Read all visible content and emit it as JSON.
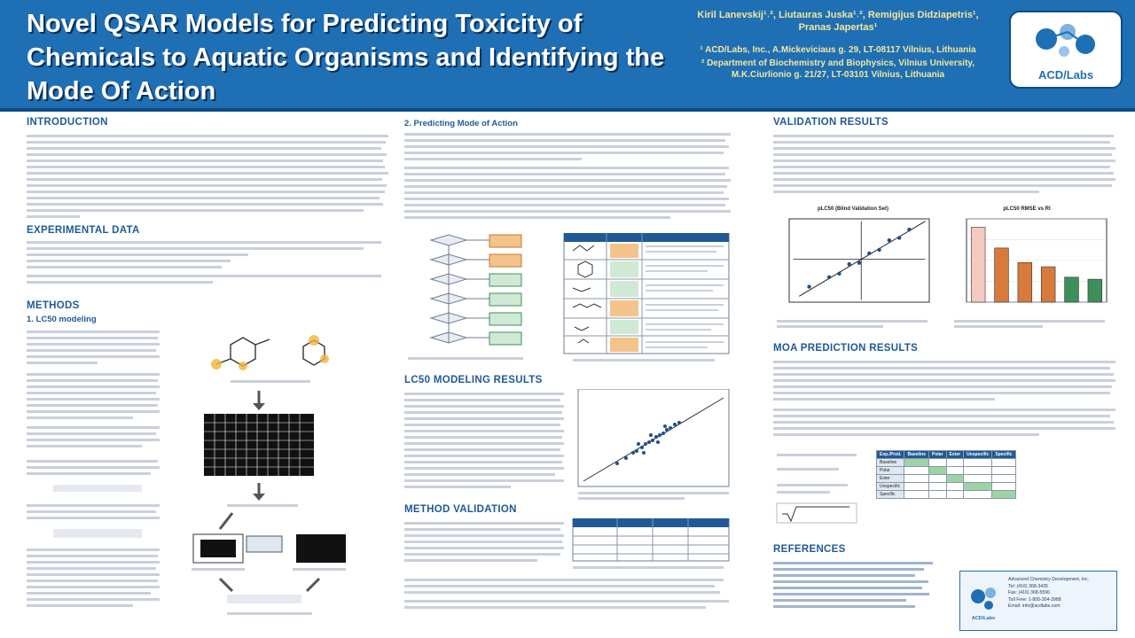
{
  "header": {
    "title": "Novel QSAR Models for Predicting Toxicity of Chemicals to Aquatic Organisms and Identifying the Mode Of Action",
    "authors": "Kiril Lanevskij¹˒², Liutauras Juska¹˒², Remigijus Didziapetris¹, Pranas Japertas¹",
    "affiliation_1": "¹ ACD/Labs, Inc., A.Mickeviciaus g. 29, LT-08117 Vilnius, Lithuania",
    "affiliation_2": "² Department of Biochemistry and Biophysics, Vilnius University, M.K.Ciurlionio g. 21/27, LT-03101 Vilnius, Lithuania",
    "logo_text": "ACD/Labs"
  },
  "sections": {
    "introduction": "INTRODUCTION",
    "experimental": "EXPERIMENTAL DATA",
    "methods": "METHODS",
    "lc50_modeling": "1. LC50 modeling",
    "predicting_moa": "2. Predicting Mode of Action",
    "lc50_results": "LC50 MODELING RESULTS",
    "method_validation": "METHOD VALIDATION",
    "validation_results": "VALIDATION RESULTS",
    "moa_results": "MOA PREDICTION RESULTS",
    "references": "REFERENCES"
  },
  "figures": {
    "chart1_title": "pLC50 (Blind Validation Set)",
    "chart2_title": "pLC50 RMSE vs RI"
  },
  "chart_data": [
    {
      "type": "bar",
      "categories": [
        "",
        "",
        "",
        "",
        "",
        ""
      ],
      "values": [
        1.8,
        1.3,
        0.95,
        0.85,
        0.6,
        0.55
      ],
      "ylim": [
        0,
        2
      ],
      "grid": true
    },
    {
      "type": "scatter",
      "x": [
        2,
        3,
        3.5,
        4,
        4.5,
        5,
        5.5,
        6,
        6.5,
        7
      ],
      "y": [
        2.3,
        3.1,
        3.4,
        4.2,
        4.3,
        5.1,
        5.4,
        6.2,
        6.4,
        7.1
      ],
      "grid": false
    }
  ],
  "table_moa": {
    "headers": [
      "Exp./Pred.",
      "Baseline",
      "Polar",
      "Ester",
      "Unspecific",
      "Specific"
    ],
    "rows": [
      [
        "Baseline",
        "",
        "",
        "",
        "",
        ""
      ],
      [
        "Polar",
        "",
        "",
        "",
        "",
        ""
      ],
      [
        "Ester",
        "",
        "",
        "",
        "",
        ""
      ],
      [
        "Unspecific",
        "",
        "",
        "",
        "",
        ""
      ],
      [
        "Specific",
        "",
        "",
        "",
        "",
        ""
      ]
    ]
  },
  "contact": {
    "line1": "Advanced Chemistry Development, Inc.",
    "line2": "Tel: (416) 368-3435",
    "line3": "Fax: (416) 368-5596",
    "line4": "Toll Free: 1-800-304-3988",
    "line5": "Email: info@acdlabs.com",
    "logo": "ACD/Labs"
  }
}
